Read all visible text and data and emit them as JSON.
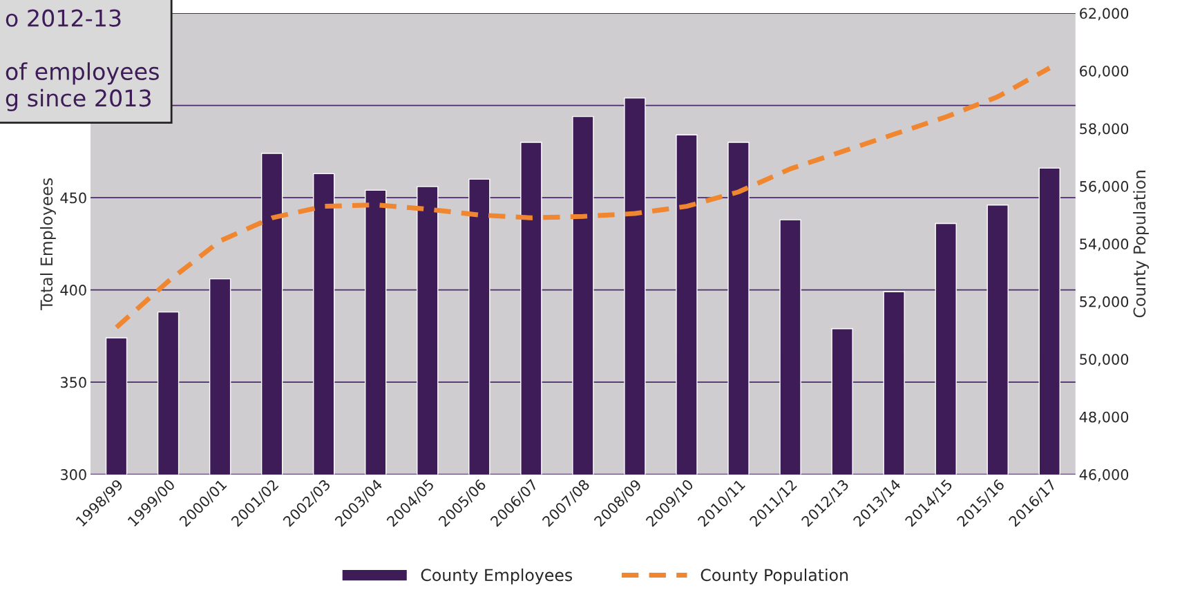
{
  "chart_data": {
    "type": "bar",
    "ylabel": "Total Employees",
    "y2label": "County Population",
    "categories": [
      "1998/99",
      "1999/00",
      "2000/01",
      "2001/02",
      "2002/03",
      "2003/04",
      "2004/05",
      "2005/06",
      "2006/07",
      "2007/08",
      "2008/09",
      "2009/10",
      "2010/11",
      "2011/12",
      "2012/13",
      "2013/14",
      "2014/15",
      "2015/16",
      "2016/17"
    ],
    "series": [
      {
        "name": "County Employees",
        "color": "#3e1c58",
        "values": [
          374,
          388,
          406,
          474,
          463,
          454,
          456,
          460,
          480,
          494,
          504,
          484,
          480,
          438,
          379,
          399,
          436,
          446,
          466
        ]
      },
      {
        "name": "County Population",
        "type": "line",
        "axis": "y2",
        "color": "#f0862f",
        "line_style": "dashed",
        "values": [
          51100,
          52700,
          54100,
          54900,
          55300,
          55350,
          55200,
          55000,
          54900,
          54950,
          55050,
          55300,
          55800,
          56600,
          57200,
          57800,
          58400,
          59100,
          60100
        ]
      }
    ],
    "ylim": [
      300,
      550
    ],
    "yticks": [
      300,
      350,
      400,
      450,
      {
        "value": 500,
        "label": null
      },
      {
        "value": 550,
        "label": null
      }
    ],
    "y2lim": [
      46000,
      62000
    ],
    "y2ticks": [
      {
        "value": 46000,
        "label": "46,000"
      },
      {
        "value": 48000,
        "label": "48,000"
      },
      {
        "value": 50000,
        "label": "50,000"
      },
      {
        "value": 52000,
        "label": "52,000"
      },
      {
        "value": 54000,
        "label": "54,000"
      },
      {
        "value": 56000,
        "label": "56,000"
      },
      {
        "value": 58000,
        "label": "58,000"
      },
      {
        "value": 60000,
        "label": "60,000"
      },
      {
        "value": 62000,
        "label": "62,000"
      }
    ],
    "grid": "y",
    "legend": "bottom",
    "annotations": [
      "o 2012-13\n\nof employees\ng since 2013"
    ]
  }
}
